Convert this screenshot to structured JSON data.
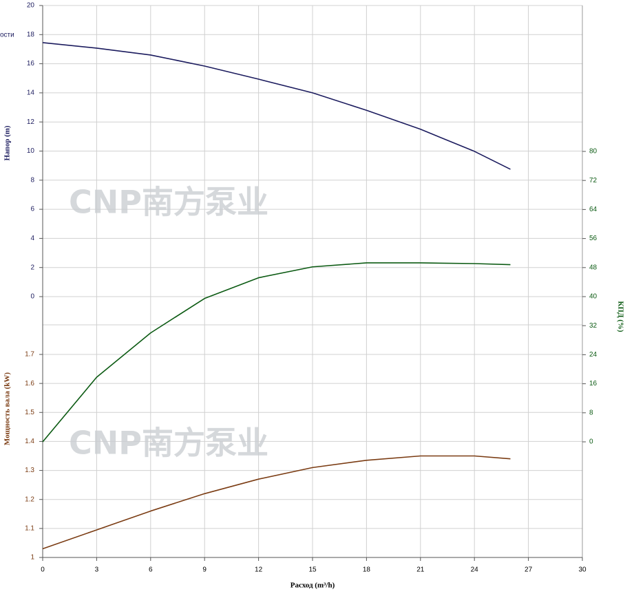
{
  "chart_data": {
    "type": "line",
    "corner_label": "ости",
    "watermark": "CNP南方泵业",
    "xlabel": "Расход (m³/h)",
    "ylabel": "Напор (m)",
    "y2label": "КПД (%)",
    "y3label": "Мощность вала (kW)",
    "x": [
      0,
      3,
      6,
      9,
      12,
      15,
      18,
      21,
      24,
      26
    ],
    "xlim": [
      0,
      30
    ],
    "xticks": [
      0,
      3,
      6,
      9,
      12,
      15,
      18,
      21,
      24,
      27,
      30
    ],
    "ylim": [
      0,
      20
    ],
    "yticks": [
      0,
      2,
      4,
      6,
      8,
      10,
      12,
      14,
      16,
      18,
      20
    ],
    "y2lim": [
      0,
      80
    ],
    "y2ticks": [
      0,
      8,
      16,
      24,
      32,
      40,
      48,
      56,
      64,
      72,
      80
    ],
    "y3lim": [
      1,
      1.7
    ],
    "y3ticks": [
      1,
      1.1,
      1.2,
      1.3,
      1.4,
      1.5,
      1.6,
      1.7
    ],
    "grid": true,
    "series": [
      {
        "name": "Напор",
        "color": "#1b1b5e",
        "axis": "y",
        "values": [
          17.45,
          17.07,
          16.6,
          15.84,
          14.94,
          14.0,
          12.8,
          11.5,
          9.98,
          8.75
        ]
      },
      {
        "name": "КПД",
        "color": "#0b5a12",
        "axis": "y2",
        "values": [
          0,
          17.8,
          30,
          39.5,
          45.2,
          48.2,
          49.3,
          49.3,
          49.1,
          48.8
        ]
      },
      {
        "name": "Мощность вала",
        "color": "#7a3b12",
        "axis": "y3",
        "values": [
          1.03,
          1.095,
          1.16,
          1.22,
          1.27,
          1.31,
          1.335,
          1.35,
          1.35,
          1.34
        ]
      }
    ]
  }
}
